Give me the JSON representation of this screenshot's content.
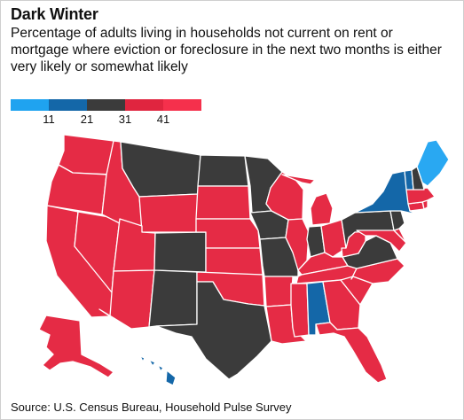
{
  "title": "Dark Winter",
  "subtitle": "Percentage of adults living in households not current on rent or mortgage where eviction or foreclosure in the next two months is either very likely or somewhat likely",
  "legend": {
    "breaks": [
      "11",
      "21",
      "31",
      "41"
    ],
    "colors": [
      "#1fa3f0",
      "#1467a8",
      "#3b3b3b",
      "#e0253f",
      "#f5304c"
    ]
  },
  "colors": {
    "light_blue": "#29a8f2",
    "dark_blue": "#1467a8",
    "dark_gray": "#3b3b3b",
    "red": "#e52b45"
  },
  "states": {
    "WA": "red",
    "OR": "red",
    "CA": "red",
    "NV": "red",
    "ID": "red",
    "MT": "dark_gray",
    "WY": "red",
    "UT": "red",
    "AZ": "red",
    "CO": "dark_gray",
    "NM": "dark_gray",
    "ND": "dark_gray",
    "SD": "red",
    "NE": "red",
    "KS": "red",
    "OK": "red",
    "TX": "dark_gray",
    "MN": "dark_gray",
    "IA": "dark_gray",
    "MO": "dark_gray",
    "AR": "red",
    "LA": "red",
    "WI": "red",
    "IL": "red",
    "MI": "red",
    "IN": "dark_gray",
    "OH": "red",
    "KY": "red",
    "TN": "red",
    "MS": "red",
    "AL": "dark_blue",
    "GA": "red",
    "FL": "red",
    "SC": "red",
    "NC": "red",
    "VA": "dark_gray",
    "WV": "red",
    "PA": "dark_gray",
    "NY": "dark_blue",
    "VT": "dark_blue",
    "NH": "dark_gray",
    "ME": "light_blue",
    "MA": "red",
    "RI": "red",
    "CT": "red",
    "NJ": "dark_gray",
    "DE": "red",
    "MD": "red",
    "AK": "red",
    "HI": "dark_blue"
  },
  "source": "Source: U.S. Census Bureau, Household Pulse Survey"
}
